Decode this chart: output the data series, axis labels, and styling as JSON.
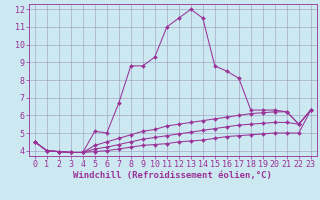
{
  "xlabel": "Windchill (Refroidissement éolien,°C)",
  "background_color": "#cce8f0",
  "line_color": "#993399",
  "xlim": [
    -0.5,
    23.5
  ],
  "ylim": [
    3.7,
    12.3
  ],
  "yticks": [
    4,
    5,
    6,
    7,
    8,
    9,
    10,
    11,
    12
  ],
  "xticks": [
    0,
    1,
    2,
    3,
    4,
    5,
    6,
    7,
    8,
    9,
    10,
    11,
    12,
    13,
    14,
    15,
    16,
    17,
    18,
    19,
    20,
    21,
    22,
    23
  ],
  "x": [
    0,
    1,
    2,
    3,
    4,
    5,
    6,
    7,
    8,
    9,
    10,
    11,
    12,
    13,
    14,
    15,
    16,
    17,
    18,
    19,
    20,
    21,
    22,
    23
  ],
  "line1": [
    4.5,
    4.0,
    3.95,
    3.9,
    3.9,
    5.1,
    5.0,
    6.7,
    8.8,
    8.8,
    9.3,
    11.0,
    11.5,
    12.0,
    11.5,
    8.8,
    8.5,
    8.1,
    6.3,
    6.3,
    6.3,
    6.2,
    5.5,
    6.3
  ],
  "line2": [
    4.5,
    4.0,
    3.95,
    3.9,
    3.9,
    4.3,
    4.5,
    4.7,
    4.9,
    5.1,
    5.2,
    5.4,
    5.5,
    5.6,
    5.7,
    5.8,
    5.9,
    6.0,
    6.1,
    6.15,
    6.2,
    6.2,
    5.5,
    6.3
  ],
  "line3": [
    4.5,
    4.0,
    3.95,
    3.9,
    3.9,
    4.1,
    4.2,
    4.35,
    4.5,
    4.65,
    4.75,
    4.85,
    4.95,
    5.05,
    5.15,
    5.25,
    5.35,
    5.45,
    5.5,
    5.55,
    5.6,
    5.6,
    5.5,
    6.3
  ],
  "line4": [
    4.5,
    4.0,
    3.95,
    3.9,
    3.9,
    3.95,
    4.0,
    4.1,
    4.2,
    4.3,
    4.35,
    4.4,
    4.5,
    4.55,
    4.6,
    4.7,
    4.8,
    4.85,
    4.9,
    4.95,
    5.0,
    5.0,
    5.0,
    6.3
  ],
  "xlabel_fontsize": 6.5,
  "tick_fontsize": 6.0,
  "grid_color": "#9999bb",
  "marker": "D",
  "markersize": 2.0,
  "linewidth": 0.75
}
